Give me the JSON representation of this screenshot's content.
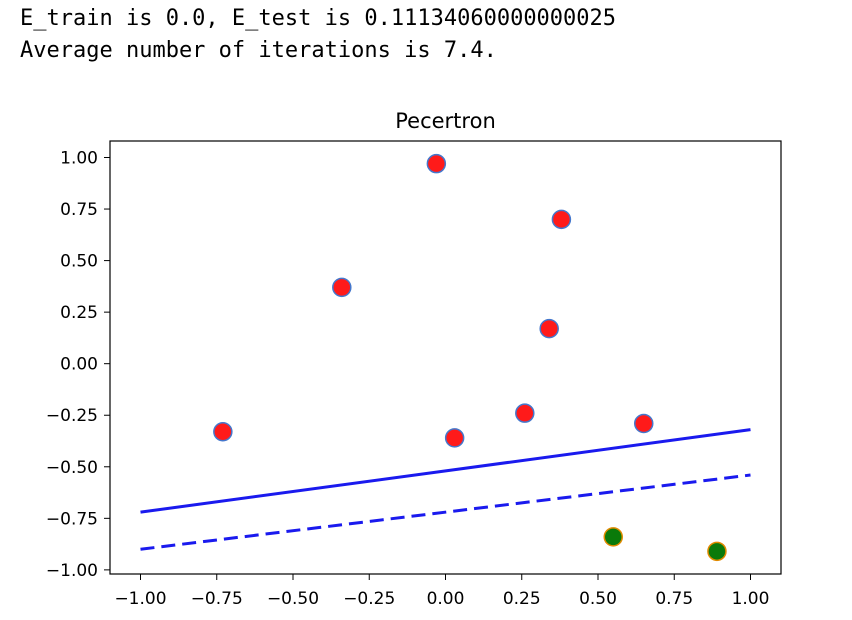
{
  "output": {
    "line1": "E_train is 0.0, E_test is 0.11134060000000025",
    "line2": "Average number of iterations is 7.4."
  },
  "chart_data": {
    "type": "scatter",
    "title": "Pecertron",
    "xlabel": "",
    "ylabel": "",
    "xlim": [
      -1.1,
      1.1
    ],
    "ylim": [
      -1.02,
      1.08
    ],
    "xticks": [
      -1.0,
      -0.75,
      -0.5,
      -0.25,
      0.0,
      0.25,
      0.5,
      0.75,
      1.0
    ],
    "xtick_labels": [
      "−1.00",
      "−0.75",
      "−0.50",
      "−0.25",
      "0.00",
      "0.25",
      "0.50",
      "0.75",
      "1.00"
    ],
    "yticks": [
      1.0,
      0.75,
      0.5,
      0.25,
      0.0,
      -0.25,
      -0.5,
      -0.75,
      -1.0
    ],
    "ytick_labels": [
      "1.00",
      "0.75",
      "0.50",
      "0.25",
      "0.00",
      "−0.25",
      "−0.50",
      "−0.75",
      "−1.00"
    ],
    "grid": false,
    "series": [
      {
        "color": "#ff1a1a",
        "edge_color": "#4477cc",
        "points": [
          {
            "x": -0.73,
            "y": -0.33
          },
          {
            "x": -0.34,
            "y": 0.37
          },
          {
            "x": -0.03,
            "y": 0.97
          },
          {
            "x": 0.03,
            "y": -0.36
          },
          {
            "x": 0.26,
            "y": -0.24
          },
          {
            "x": 0.34,
            "y": 0.17
          },
          {
            "x": 0.38,
            "y": 0.7
          },
          {
            "x": 0.65,
            "y": -0.29
          }
        ]
      },
      {
        "color": "#0a7a0a",
        "edge_color": "#e08a00",
        "points": [
          {
            "x": 0.55,
            "y": -0.84
          },
          {
            "x": 0.89,
            "y": -0.91
          }
        ]
      }
    ],
    "lines": [
      {
        "style": "solid",
        "color": "#1a1aee",
        "x": [
          -1.0,
          1.0
        ],
        "y": [
          -0.72,
          -0.32
        ]
      },
      {
        "style": "dashed",
        "color": "#1a1aee",
        "x": [
          -1.0,
          1.0
        ],
        "y": [
          -0.9,
          -0.54
        ]
      }
    ]
  }
}
